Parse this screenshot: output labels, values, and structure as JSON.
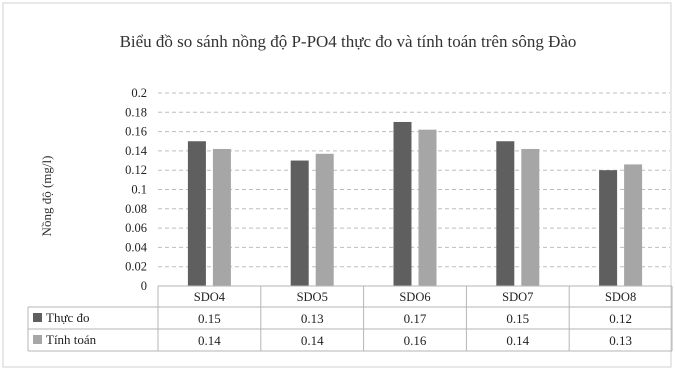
{
  "chart_data": {
    "type": "bar",
    "title": "Biểu đồ so sánh nồng độ P-PO4 thực đo và tính toán trên sông Đào",
    "xlabel": "",
    "ylabel": "Nồng độ (mg/l)",
    "ylim": [
      0,
      0.2
    ],
    "yticks": [
      "0",
      "0.02",
      "0.04",
      "0.06",
      "0.08",
      "0.1",
      "0.12",
      "0.14",
      "0.16",
      "0.18",
      "0.2"
    ],
    "grid": true,
    "legend": "data-table",
    "categories": [
      "SDO4",
      "SDO5",
      "SDO6",
      "SDO7",
      "SDO8"
    ],
    "series": [
      {
        "name": "Thực đo",
        "color": "#5f5f5f",
        "values": [
          0.15,
          0.13,
          0.17,
          0.15,
          0.12
        ],
        "labels": [
          "0.15",
          "0.13",
          "0.17",
          "0.15",
          "0.12"
        ]
      },
      {
        "name": "Tính toán",
        "color": "#a6a6a6",
        "values": [
          0.142,
          0.137,
          0.162,
          0.142,
          0.126
        ],
        "labels": [
          "0.14",
          "0.14",
          "0.16",
          "0.14",
          "0.13"
        ]
      }
    ]
  }
}
